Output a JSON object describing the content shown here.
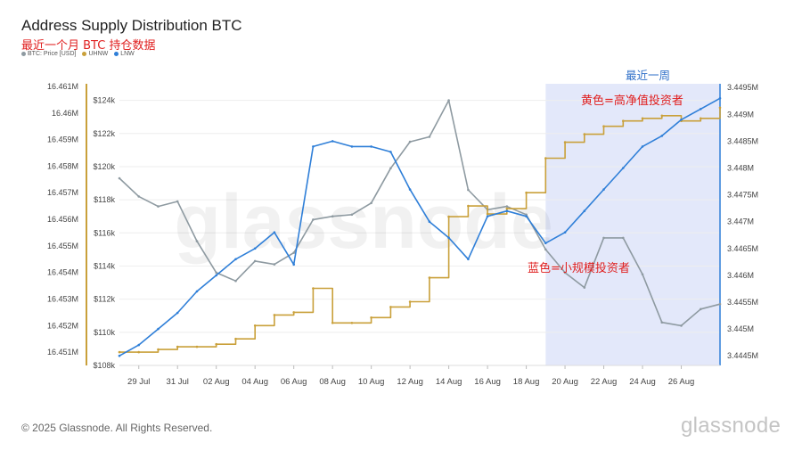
{
  "title": "Address Supply Distribution BTC",
  "subtitle": "最近一个月 BTC 持仓数据",
  "legend": [
    {
      "label": "BTC: Price [USD]",
      "color": "#8e9aa1"
    },
    {
      "label": "UHNW",
      "color": "#c9a03a"
    },
    {
      "label": "LNW",
      "color": "#2f7fd8"
    }
  ],
  "footer": "© 2025 Glassnode. All Rights Reserved.",
  "brand": "glassnode",
  "watermark": "glassnode",
  "chart_data": {
    "type": "line",
    "x_ticks": [
      "29 Jul",
      "31 Jul",
      "02 Aug",
      "04 Aug",
      "06 Aug",
      "08 Aug",
      "10 Aug",
      "12 Aug",
      "14 Aug",
      "16 Aug",
      "18 Aug",
      "20 Aug",
      "22 Aug",
      "24 Aug",
      "26 Aug"
    ],
    "xlim": [
      "2025-07-28",
      "2025-08-28"
    ],
    "left_axis": {
      "ticks": [
        "16.451M",
        "16.452M",
        "16.453M",
        "16.454M",
        "16.455M",
        "16.456M",
        "16.457M",
        "16.458M",
        "16.459M",
        "16.46M",
        "16.461M"
      ],
      "range": [
        16.4505,
        16.4611
      ],
      "unit": "M"
    },
    "price_axis": {
      "ticks": [
        "$108k",
        "$110k",
        "$112k",
        "$114k",
        "$116k",
        "$118k",
        "$120k",
        "$122k",
        "$124k"
      ],
      "range": [
        108000,
        125000
      ]
    },
    "right_axis": {
      "ticks": [
        "3.4445M",
        "3.445M",
        "3.4455M",
        "3.446M",
        "3.4465M",
        "3.447M",
        "3.4475M",
        "3.448M",
        "3.4485M",
        "3.449M",
        "3.4495M"
      ],
      "range": [
        3.44432,
        3.44957
      ],
      "unit": "M"
    },
    "series": [
      {
        "name": "BTC: Price [USD]",
        "color": "#8e9aa1",
        "axis": "price",
        "x": [
          "2025-07-28",
          "2025-07-29",
          "2025-07-30",
          "2025-07-31",
          "2025-08-01",
          "2025-08-02",
          "2025-08-03",
          "2025-08-04",
          "2025-08-05",
          "2025-08-06",
          "2025-08-07",
          "2025-08-08",
          "2025-08-09",
          "2025-08-10",
          "2025-08-11",
          "2025-08-12",
          "2025-08-13",
          "2025-08-14",
          "2025-08-15",
          "2025-08-16",
          "2025-08-17",
          "2025-08-18",
          "2025-08-19",
          "2025-08-20",
          "2025-08-21",
          "2025-08-22",
          "2025-08-23",
          "2025-08-24",
          "2025-08-25",
          "2025-08-26",
          "2025-08-27",
          "2025-08-28"
        ],
        "values": [
          119300,
          118200,
          117600,
          117900,
          115500,
          113600,
          113100,
          114300,
          114100,
          114800,
          116800,
          117000,
          117100,
          117800,
          119900,
          121500,
          121800,
          124000,
          118600,
          117400,
          117600,
          117100,
          115000,
          113600,
          112700,
          115700,
          115700,
          113500,
          110600,
          110400,
          111400,
          111700
        ]
      },
      {
        "name": "UHNW",
        "color": "#c9a03a",
        "axis": "left",
        "x": [
          "2025-07-28",
          "2025-07-29",
          "2025-07-30",
          "2025-07-31",
          "2025-08-01",
          "2025-08-02",
          "2025-08-03",
          "2025-08-04",
          "2025-08-05",
          "2025-08-06",
          "2025-08-07",
          "2025-08-08",
          "2025-08-09",
          "2025-08-10",
          "2025-08-11",
          "2025-08-12",
          "2025-08-13",
          "2025-08-14",
          "2025-08-15",
          "2025-08-16",
          "2025-08-17",
          "2025-08-18",
          "2025-08-19",
          "2025-08-20",
          "2025-08-21",
          "2025-08-22",
          "2025-08-23",
          "2025-08-24",
          "2025-08-25",
          "2025-08-26",
          "2025-08-27",
          "2025-08-28"
        ],
        "values": [
          16.451,
          16.451,
          16.4511,
          16.4512,
          16.4512,
          16.4513,
          16.4515,
          16.452,
          16.4524,
          16.4525,
          16.4534,
          16.4521,
          16.4521,
          16.4523,
          16.4527,
          16.4529,
          16.4538,
          16.4561,
          16.4565,
          16.4562,
          16.4564,
          16.457,
          16.4583,
          16.4589,
          16.4592,
          16.4595,
          16.4597,
          16.4598,
          16.4599,
          16.4597,
          16.4598,
          16.4602
        ]
      },
      {
        "name": "LNW",
        "color": "#2f7fd8",
        "axis": "right",
        "x": [
          "2025-07-28",
          "2025-07-29",
          "2025-07-30",
          "2025-07-31",
          "2025-08-01",
          "2025-08-02",
          "2025-08-03",
          "2025-08-04",
          "2025-08-05",
          "2025-08-06",
          "2025-08-07",
          "2025-08-08",
          "2025-08-09",
          "2025-08-10",
          "2025-08-11",
          "2025-08-12",
          "2025-08-13",
          "2025-08-14",
          "2025-08-15",
          "2025-08-16",
          "2025-08-17",
          "2025-08-18",
          "2025-08-19",
          "2025-08-20",
          "2025-08-21",
          "2025-08-22",
          "2025-08-23",
          "2025-08-24",
          "2025-08-25",
          "2025-08-26",
          "2025-08-27",
          "2025-08-28"
        ],
        "values": [
          3.4445,
          3.4447,
          3.445,
          3.4453,
          3.4457,
          3.446,
          3.4463,
          3.4465,
          3.4468,
          3.4462,
          3.4484,
          3.4485,
          3.4484,
          3.4484,
          3.4483,
          3.4476,
          3.447,
          3.4467,
          3.4463,
          3.4471,
          3.4472,
          3.4471,
          3.4466,
          3.4468,
          3.4472,
          3.4476,
          3.448,
          3.4484,
          3.4486,
          3.4489,
          3.4491,
          3.4493
        ]
      }
    ],
    "highlight": {
      "from": "2025-08-19",
      "to": "2025-08-28",
      "label": "最近一周"
    },
    "annotations": [
      {
        "text": "黄色=高净值投资者",
        "color": "#e02020"
      },
      {
        "text": "蓝色=小规模投资者",
        "color": "#e02020"
      }
    ]
  }
}
